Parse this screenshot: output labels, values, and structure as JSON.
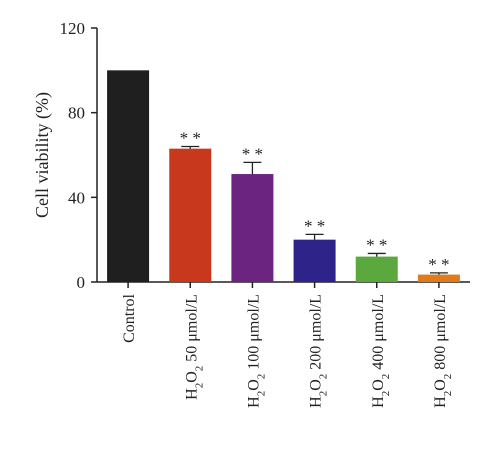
{
  "chart_data": {
    "type": "bar",
    "title": "",
    "xlabel": "",
    "ylabel": "Cell viability (%)",
    "ylim": [
      0,
      120
    ],
    "yticks": [
      0,
      40,
      80,
      120
    ],
    "grid": false,
    "categories": [
      {
        "prefix": "",
        "main": "Control"
      },
      {
        "prefix": "H2O2",
        "main": "50 μmol/L"
      },
      {
        "prefix": "H2O2",
        "main": "100 μmol/L"
      },
      {
        "prefix": "H2O2",
        "main": "200 μmol/L"
      },
      {
        "prefix": "H2O2",
        "main": "400 μmol/L"
      },
      {
        "prefix": "H2O2",
        "main": "800 μmol/L"
      }
    ],
    "values": [
      100,
      63,
      51,
      20,
      12,
      3.5
    ],
    "errors": [
      0,
      1,
      5.5,
      2.5,
      1.5,
      0.8
    ],
    "significance": [
      "",
      "**",
      "**",
      "**",
      "**",
      "**"
    ],
    "colors": [
      "#1f1f1f",
      "#c8381c",
      "#6b2480",
      "#2e2388",
      "#5aa83e",
      "#e07a1a"
    ]
  }
}
